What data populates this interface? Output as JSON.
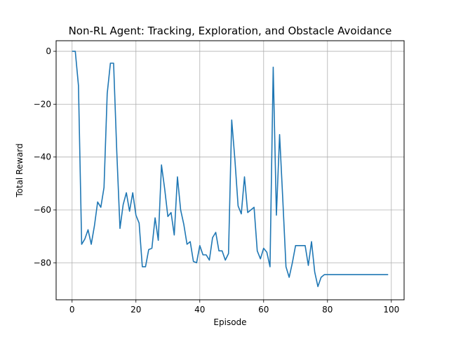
{
  "chart_data": {
    "type": "line",
    "title": "Non-RL Agent: Tracking, Exploration, and Obstacle Avoidance",
    "xlabel": "Episode",
    "ylabel": "Total Reward",
    "xlim": [
      -5,
      104
    ],
    "ylim": [
      -94,
      4
    ],
    "xticks": [
      0,
      20,
      40,
      60,
      80,
      100
    ],
    "yticks": [
      0,
      -20,
      -40,
      -60,
      -80
    ],
    "grid": true,
    "line_color": "#1f77b4",
    "series": [
      {
        "x": [
          0,
          1,
          2,
          3,
          4,
          5,
          6,
          7,
          8,
          9,
          10,
          11,
          12,
          13,
          14,
          15,
          16,
          17,
          18,
          19,
          20,
          21,
          22,
          23,
          24,
          25,
          26,
          27,
          28,
          29,
          30,
          31,
          32,
          33,
          34,
          35,
          36,
          37,
          38,
          39,
          40,
          41,
          42,
          43,
          44,
          45,
          46,
          47,
          48,
          49,
          50,
          51,
          52,
          53,
          54,
          55,
          56,
          57,
          58,
          59,
          60,
          61,
          62,
          63,
          64,
          65,
          66,
          67,
          68,
          69,
          70,
          71,
          72,
          73,
          74,
          75,
          76,
          77,
          78,
          79,
          80,
          81,
          82,
          83,
          84,
          85,
          86,
          87,
          88,
          89,
          90,
          91,
          92,
          93,
          94,
          95,
          96,
          97,
          98,
          99
        ],
        "values": [
          0,
          0,
          -13,
          -73,
          -71,
          -67.5,
          -73,
          -66,
          -57,
          -59,
          -51.5,
          -16,
          -4.5,
          -4.5,
          -38,
          -67,
          -58,
          -53.5,
          -60.5,
          -53.5,
          -62,
          -65,
          -81.5,
          -81.5,
          -75,
          -74.5,
          -63,
          -71.5,
          -43,
          -52,
          -62.5,
          -61,
          -69.5,
          -47.5,
          -60,
          -65.5,
          -73,
          -72,
          -79.5,
          -80,
          -73.5,
          -77,
          -77,
          -79,
          -70.5,
          -68.5,
          -75.5,
          -75.5,
          -79,
          -76.5,
          -26,
          -41,
          -58.5,
          -61.5,
          -47.5,
          -61,
          -60,
          -59,
          -75.5,
          -78.5,
          -74.5,
          -76,
          -81.5,
          -6,
          -62,
          -31.5,
          -56,
          -81.5,
          -85.5,
          -80,
          -73.5,
          -73.5,
          -73.5,
          -73.5,
          -81,
          -72,
          -83.5,
          -89,
          -85.5,
          -84.5,
          -84.5,
          -84.5,
          -84.5,
          -84.5,
          -84.5,
          -84.5,
          -84.5,
          -84.5,
          -84.5,
          -84.5,
          -84.5,
          -84.5,
          -84.5,
          -84.5,
          -84.5,
          -84.5,
          -84.5,
          -84.5,
          -84.5,
          -84.5
        ]
      }
    ]
  }
}
